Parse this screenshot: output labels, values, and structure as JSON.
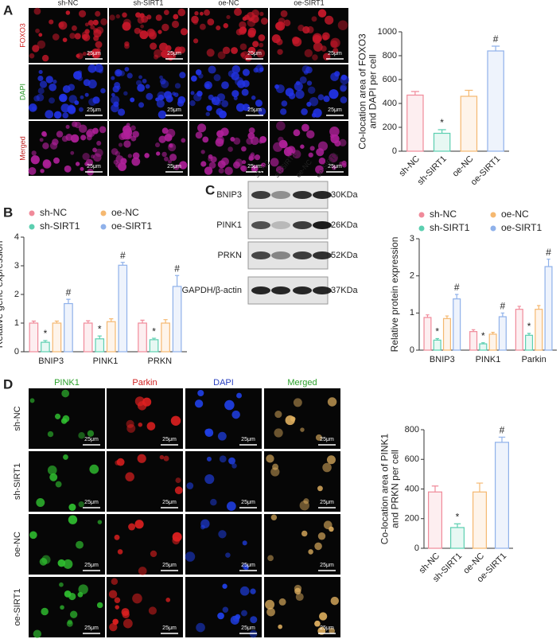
{
  "panel_a": {
    "label": "A",
    "columns": [
      "sh-NC",
      "sh-SIRT1",
      "oe-NC",
      "oe-SIRT1"
    ],
    "rows": [
      "FOXO3",
      "DAPI",
      "Merged"
    ],
    "scale_bar": "25μm"
  },
  "panel_b": {
    "label": "B"
  },
  "panel_c": {
    "label": "C",
    "lanes": [
      "sh-NC",
      "sh-SIRT1",
      "oe-NC",
      "oe-SIRT1"
    ],
    "proteins": [
      "BNIP3",
      "PINK1",
      "PRKN",
      "GAPDH/β-actin"
    ],
    "weights": [
      "30KDa",
      "26KDa",
      "52KDa",
      "37KDa"
    ]
  },
  "panel_d": {
    "label": "D",
    "columns": [
      "PINK1",
      "Parkin",
      "DAPI",
      "Merged"
    ],
    "rows": [
      "sh-NC",
      "sh-SIRT1",
      "oe-NC",
      "oe-SIRT1"
    ],
    "scale_bar": "25μm"
  },
  "chart_data": [
    {
      "type": "bar",
      "y_label": [
        "Co-location area of FOXO3",
        "and DAPI per cell"
      ],
      "categories": [
        "sh-NC",
        "sh-SIRT1",
        "oe-NC",
        "oe-SIRT1"
      ],
      "values": [
        470,
        150,
        460,
        840
      ],
      "errors": [
        30,
        30,
        50,
        40
      ],
      "colors": [
        "#f08a9a",
        "#5ccfb0",
        "#f5b870",
        "#8fb1ea"
      ],
      "ylim": [
        0,
        1000
      ],
      "yticks": [
        0,
        200,
        400,
        600,
        800,
        1000
      ],
      "annotations": [
        {
          "category": "sh-SIRT1",
          "text": "*"
        },
        {
          "category": "oe-SIRT1",
          "text": "#"
        }
      ]
    },
    {
      "type": "grouped-bar",
      "y_label": [
        "Relative gene expression"
      ],
      "categories": [
        "BNIP3",
        "PINK1",
        "PRKN"
      ],
      "series": [
        {
          "name": "sh-NC",
          "color": "#f08a9a",
          "values": [
            1.0,
            1.0,
            1.0
          ],
          "errors": [
            0.07,
            0.08,
            0.1
          ]
        },
        {
          "name": "sh-SIRT1",
          "color": "#5ccfb0",
          "values": [
            0.33,
            0.45,
            0.42
          ],
          "errors": [
            0.06,
            0.1,
            0.05
          ]
        },
        {
          "name": "oe-NC",
          "color": "#f5b870",
          "values": [
            1.0,
            1.05,
            1.0
          ],
          "errors": [
            0.07,
            0.1,
            0.12
          ]
        },
        {
          "name": "oe-SIRT1",
          "color": "#8fb1ea",
          "values": [
            1.68,
            3.02,
            2.28
          ],
          "errors": [
            0.15,
            0.1,
            0.38
          ]
        }
      ],
      "ylim": [
        0,
        4
      ],
      "yticks": [
        0,
        1,
        2,
        3,
        4
      ],
      "annotations": [
        {
          "series": "sh-SIRT1",
          "text": "*"
        },
        {
          "series": "oe-SIRT1",
          "text": "#"
        }
      ]
    },
    {
      "type": "grouped-bar",
      "y_label": [
        "Relative protein expression"
      ],
      "categories": [
        "BNIP3",
        "PINK1",
        "Parkin"
      ],
      "series": [
        {
          "name": "sh-NC",
          "color": "#f08a9a",
          "values": [
            0.88,
            0.5,
            1.1
          ],
          "errors": [
            0.07,
            0.05,
            0.08
          ]
        },
        {
          "name": "sh-SIRT1",
          "color": "#5ccfb0",
          "values": [
            0.27,
            0.17,
            0.4
          ],
          "errors": [
            0.04,
            0.03,
            0.05
          ]
        },
        {
          "name": "oe-NC",
          "color": "#f5b870",
          "values": [
            0.85,
            0.43,
            1.1
          ],
          "errors": [
            0.07,
            0.05,
            0.1
          ]
        },
        {
          "name": "oe-SIRT1",
          "color": "#8fb1ea",
          "values": [
            1.38,
            0.9,
            2.25
          ],
          "errors": [
            0.12,
            0.1,
            0.2
          ]
        }
      ],
      "ylim": [
        0,
        3
      ],
      "yticks": [
        0,
        1,
        2,
        3
      ],
      "annotations": [
        {
          "series": "sh-SIRT1",
          "text": "*"
        },
        {
          "series": "oe-SIRT1",
          "text": "#"
        }
      ]
    },
    {
      "type": "bar",
      "y_label": [
        "Co-location area of PINK1",
        "and PRKN per cell"
      ],
      "categories": [
        "sh-NC",
        "sh-SIRT1",
        "oe-NC",
        "oe-SIRT1"
      ],
      "values": [
        380,
        140,
        380,
        715
      ],
      "errors": [
        40,
        25,
        60,
        35
      ],
      "colors": [
        "#f08a9a",
        "#5ccfb0",
        "#f5b870",
        "#8fb1ea"
      ],
      "ylim": [
        0,
        800
      ],
      "yticks": [
        0,
        200,
        400,
        600,
        800
      ],
      "annotations": [
        {
          "category": "sh-SIRT1",
          "text": "*"
        },
        {
          "category": "oe-SIRT1",
          "text": "#"
        }
      ]
    }
  ]
}
